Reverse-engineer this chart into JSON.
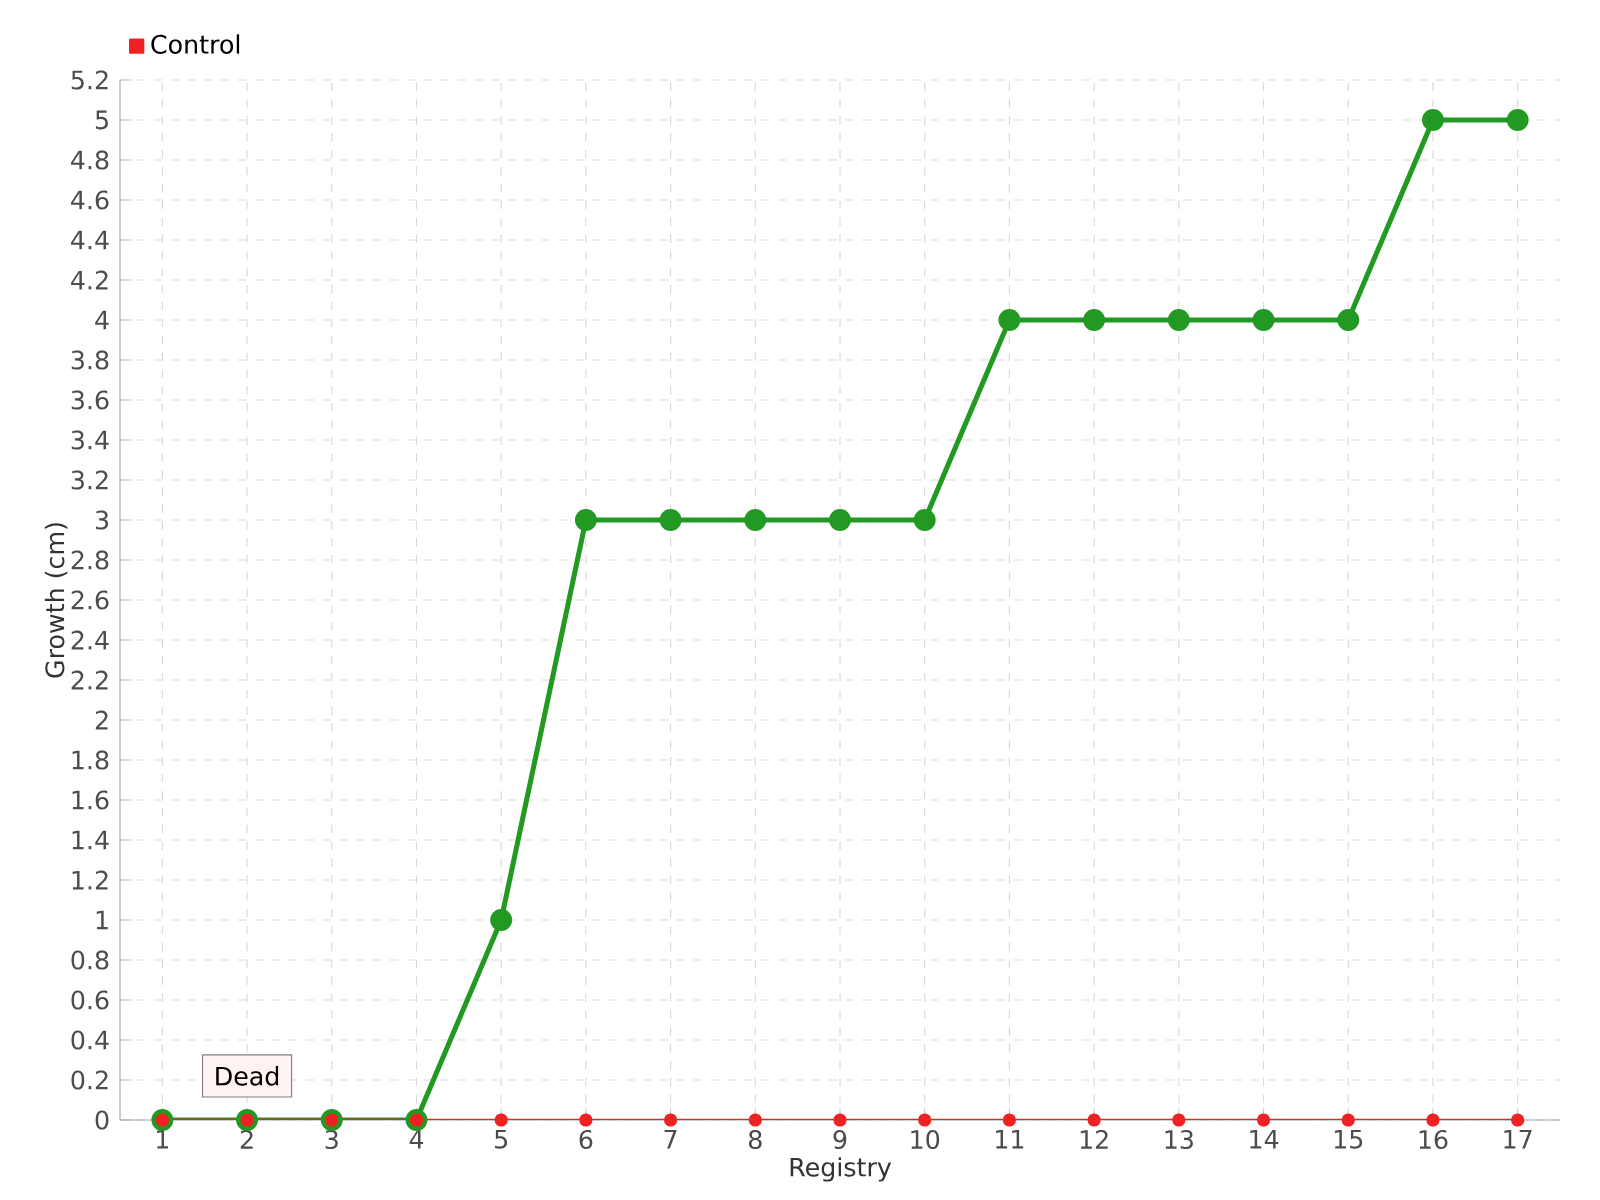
{
  "chart_data": {
    "type": "line",
    "xlabel": "Registry",
    "ylabel": "Growth (cm)",
    "categories": [
      "1",
      "2",
      "3",
      "4",
      "5",
      "6",
      "7",
      "8",
      "9",
      "10",
      "11",
      "12",
      "13",
      "14",
      "15",
      "16",
      "17"
    ],
    "series": [
      {
        "color": "#229922",
        "values": [
          0,
          0,
          0,
          0,
          1,
          3,
          3,
          3,
          3,
          3,
          4,
          4,
          4,
          4,
          4,
          5,
          5
        ]
      },
      {
        "name": "Control",
        "color": "#ee2222",
        "values": [
          0,
          0,
          0,
          0,
          0,
          0,
          0,
          0,
          0,
          0,
          0,
          0,
          0,
          0,
          0,
          0,
          0
        ]
      }
    ],
    "ylim": [
      0,
      5.2
    ],
    "yticks": [
      0,
      0.2,
      0.4,
      0.6,
      0.8,
      1,
      1.2,
      1.4,
      1.6,
      1.8,
      2,
      2.2,
      2.4,
      2.6,
      2.8,
      3,
      3.2,
      3.4,
      3.6,
      3.8,
      4,
      4.2,
      4.4,
      4.6,
      4.8,
      5,
      5.2
    ],
    "grid": true,
    "legend": "top left",
    "marker": "circle",
    "annotations": [
      {
        "text": "Dead",
        "x": "2",
        "y": 0
      }
    ]
  }
}
